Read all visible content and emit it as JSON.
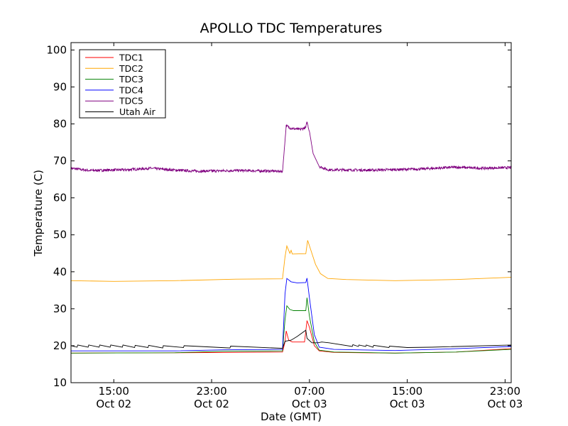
{
  "chart_data": {
    "type": "line",
    "title": "APOLLO TDC Temperatures",
    "xlabel": "Date (GMT)",
    "ylabel": "Temperature (C)",
    "x_units": "hours since Oct 02 00:00 GMT",
    "xlim": [
      11.5,
      47.5
    ],
    "ylim": [
      10,
      102
    ],
    "yticks": [
      10,
      20,
      30,
      40,
      50,
      60,
      70,
      80,
      90,
      100
    ],
    "xticks": [
      {
        "value": 15,
        "label_time": "15:00",
        "label_date": "Oct 02"
      },
      {
        "value": 23,
        "label_time": "23:00",
        "label_date": "Oct 02"
      },
      {
        "value": 31,
        "label_time": "07:00",
        "label_date": "Oct 03"
      },
      {
        "value": 39,
        "label_time": "15:00",
        "label_date": "Oct 03"
      },
      {
        "value": 47,
        "label_time": "23:00",
        "label_date": "Oct 03"
      }
    ],
    "grid": false,
    "legend_position": "top-left",
    "series": [
      {
        "name": "TDC1",
        "color": "#ff0000",
        "noise": 0,
        "points": [
          [
            11.5,
            18.0
          ],
          [
            20,
            18.1
          ],
          [
            28.8,
            18.3
          ],
          [
            29.0,
            21
          ],
          [
            29.1,
            24
          ],
          [
            29.3,
            21.5
          ],
          [
            29.6,
            21
          ],
          [
            30.6,
            21
          ],
          [
            30.8,
            26.8
          ],
          [
            31.0,
            25
          ],
          [
            31.4,
            20
          ],
          [
            31.8,
            18.6
          ],
          [
            33,
            18.2
          ],
          [
            38,
            18.0
          ],
          [
            43,
            18.3
          ],
          [
            47.5,
            19.2
          ]
        ]
      },
      {
        "name": "TDC2",
        "color": "#ffa500",
        "noise": 0,
        "points": [
          [
            11.5,
            37.6
          ],
          [
            15,
            37.4
          ],
          [
            20,
            37.6
          ],
          [
            25,
            38.0
          ],
          [
            28.8,
            38.1
          ],
          [
            29.0,
            44
          ],
          [
            29.15,
            47
          ],
          [
            29.4,
            45
          ],
          [
            29.5,
            45.8
          ],
          [
            29.6,
            44.8
          ],
          [
            30.7,
            44.9
          ],
          [
            30.85,
            48.5
          ],
          [
            31.1,
            46
          ],
          [
            31.5,
            42
          ],
          [
            31.9,
            39.5
          ],
          [
            32.5,
            38.2
          ],
          [
            34,
            37.9
          ],
          [
            38,
            37.6
          ],
          [
            43,
            37.9
          ],
          [
            47.5,
            38.5
          ]
        ]
      },
      {
        "name": "TDC3",
        "color": "#008000",
        "noise": 0,
        "points": [
          [
            11.5,
            18.0
          ],
          [
            20,
            18.1
          ],
          [
            24,
            18.5
          ],
          [
            28.8,
            18.6
          ],
          [
            29.0,
            27
          ],
          [
            29.15,
            30.8
          ],
          [
            29.4,
            29.8
          ],
          [
            29.7,
            29.5
          ],
          [
            30.7,
            29.5
          ],
          [
            30.8,
            33
          ],
          [
            31.0,
            28
          ],
          [
            31.4,
            21
          ],
          [
            31.8,
            18.8
          ],
          [
            33,
            18.3
          ],
          [
            38,
            18.0
          ],
          [
            43,
            18.3
          ],
          [
            47.5,
            19.0
          ]
        ]
      },
      {
        "name": "TDC4",
        "color": "#0000ff",
        "noise": 0,
        "points": [
          [
            11.5,
            18.6
          ],
          [
            20,
            18.6
          ],
          [
            24,
            18.9
          ],
          [
            28.8,
            19.0
          ],
          [
            29.0,
            34
          ],
          [
            29.15,
            38.2
          ],
          [
            29.5,
            37.3
          ],
          [
            30.0,
            37
          ],
          [
            30.7,
            37.1
          ],
          [
            30.8,
            38.3
          ],
          [
            31.0,
            33
          ],
          [
            31.4,
            23
          ],
          [
            31.8,
            19.6
          ],
          [
            33,
            19.0
          ],
          [
            38,
            18.7
          ],
          [
            43,
            19.2
          ],
          [
            47.5,
            19.8
          ]
        ]
      },
      {
        "name": "TDC5",
        "color": "#800080",
        "noise": 0.35,
        "points": [
          [
            11.5,
            68
          ],
          [
            13,
            67.4
          ],
          [
            16,
            67.6
          ],
          [
            18,
            68
          ],
          [
            20,
            67.5
          ],
          [
            22,
            67.2
          ],
          [
            25,
            67.4
          ],
          [
            28.8,
            67.2
          ],
          [
            29.1,
            79.5
          ],
          [
            29.5,
            78.8
          ],
          [
            30.2,
            78.5
          ],
          [
            30.7,
            79
          ],
          [
            30.8,
            80.5
          ],
          [
            31.0,
            78
          ],
          [
            31.3,
            72
          ],
          [
            31.8,
            68.5
          ],
          [
            32.5,
            67.6
          ],
          [
            36,
            67.5
          ],
          [
            40,
            67.8
          ],
          [
            43,
            68.3
          ],
          [
            45,
            68
          ],
          [
            47.5,
            68.2
          ]
        ]
      },
      {
        "name": "Utah Air",
        "color": "#000000",
        "noise": 0,
        "points": [
          [
            11.5,
            20.0
          ],
          [
            12.0,
            19.6
          ],
          [
            12.05,
            20.2
          ],
          [
            12.9,
            19.6
          ],
          [
            12.95,
            20.2
          ],
          [
            13.8,
            19.6
          ],
          [
            13.85,
            20.2
          ],
          [
            14.7,
            19.6
          ],
          [
            14.75,
            20.2
          ],
          [
            15.7,
            19.6
          ],
          [
            15.75,
            20.2
          ],
          [
            16.7,
            19.5
          ],
          [
            16.75,
            20.1
          ],
          [
            17.8,
            19.5
          ],
          [
            17.85,
            20.1
          ],
          [
            19.0,
            19.4
          ],
          [
            19.05,
            20.0
          ],
          [
            20.7,
            19.5
          ],
          [
            20.75,
            20.0
          ],
          [
            24.5,
            19.4
          ],
          [
            24.55,
            19.9
          ],
          [
            28.8,
            19.3
          ],
          [
            29.0,
            21.2
          ],
          [
            29.5,
            21.5
          ],
          [
            30.0,
            22.5
          ],
          [
            30.7,
            24.2
          ],
          [
            30.8,
            22.0
          ],
          [
            31.2,
            20.8
          ],
          [
            31.7,
            20.8
          ],
          [
            32.0,
            21.0
          ],
          [
            32.6,
            20.8
          ],
          [
            34.5,
            19.8
          ],
          [
            34.55,
            20.3
          ],
          [
            35.0,
            19.8
          ],
          [
            35.05,
            20.2
          ],
          [
            35.6,
            19.8
          ],
          [
            35.65,
            20.2
          ],
          [
            36.2,
            19.6
          ],
          [
            36.25,
            20.1
          ],
          [
            37.5,
            19.5
          ],
          [
            37.55,
            19.9
          ],
          [
            39,
            19.5
          ],
          [
            41,
            19.6
          ],
          [
            47.5,
            20.2
          ]
        ]
      }
    ]
  }
}
